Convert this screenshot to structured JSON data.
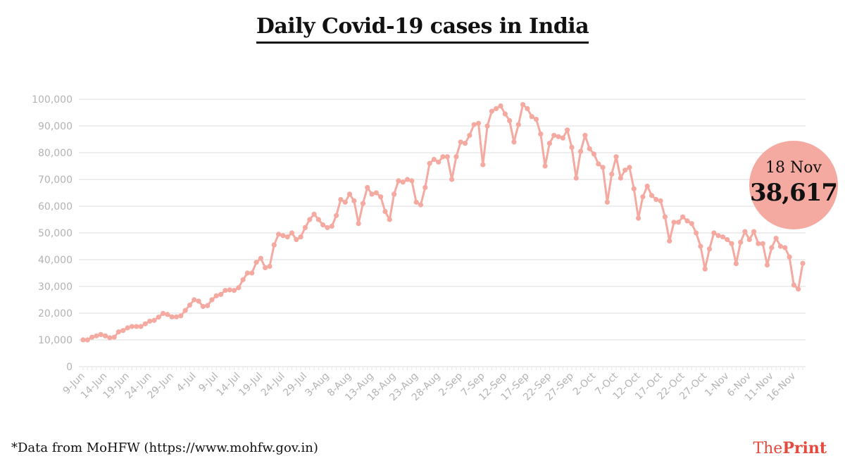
{
  "title": "Daily Covid-19 cases in India",
  "callout": {
    "date": "18 Nov",
    "value": "38,617"
  },
  "source": "*Data from MoHFW (https://www.mohfw.gov.in)",
  "logo": {
    "part1": "The",
    "part2": "Print"
  },
  "colors": {
    "line": "#f5aaa1",
    "grid": "#e8e8e8",
    "tick": "#b3b3b3",
    "brand": "#e44b3e"
  },
  "chart_data": {
    "type": "line",
    "title": "Daily Covid-19 cases in India",
    "xlabel": "",
    "ylabel": "",
    "ylim": [
      0,
      100000
    ],
    "yticks": [
      0,
      10000,
      20000,
      30000,
      40000,
      50000,
      60000,
      70000,
      80000,
      90000,
      100000
    ],
    "ytick_labels": [
      "0",
      "10,000",
      "20,000",
      "30,000",
      "40,000",
      "50,000",
      "60,000",
      "70,000",
      "80,000",
      "90,000",
      "100,000"
    ],
    "xtick_labels": [
      "9-Jun",
      "14-Jun",
      "19-Jun",
      "24-Jun",
      "29-Jun",
      "4-Jul",
      "9-Jul",
      "14-Jul",
      "19-Jul",
      "24-Jul",
      "29-Jul",
      "3-Aug",
      "8-Aug",
      "13-Aug",
      "18-Aug",
      "23-Aug",
      "28-Aug",
      "2-Sep",
      "7-Sep",
      "12-Sep",
      "17-Sep",
      "22-Sep",
      "27-Sep",
      "2-Oct",
      "7-Oct",
      "12-Oct",
      "17-Oct",
      "22-Oct",
      "27-Oct",
      "1-Nov",
      "6-Nov",
      "11-Nov",
      "16-Nov"
    ],
    "grid": true,
    "series": [
      {
        "values": [
          10000,
          10000,
          11000,
          11500,
          12000,
          11500,
          10800,
          11000,
          13000,
          13500,
          14500,
          15000,
          15000,
          15000,
          16000,
          17000,
          17300,
          18500,
          19900,
          19500,
          18600,
          18600,
          19000,
          21000,
          23000,
          25000,
          24500,
          22500,
          22800,
          25000,
          26500,
          27000,
          28500,
          28700,
          28500,
          29500,
          32500,
          35000,
          35000,
          39000,
          40500,
          37000,
          37500,
          45500,
          49500,
          49000,
          48500,
          50000,
          47500,
          48500,
          52000,
          55000,
          57000,
          55000,
          53000,
          52000,
          52500,
          56500,
          62500,
          61500,
          64500,
          62000,
          53500,
          61000,
          67000,
          64500,
          65000,
          63500,
          58000,
          55000,
          64500,
          69500,
          69000,
          70000,
          69500,
          61500,
          60500,
          67000,
          76000,
          77500,
          76500,
          78500,
          78500,
          70000,
          78500,
          84000,
          83500,
          86500,
          90500,
          91000,
          75500,
          90000,
          95500,
          96500,
          97500,
          94500,
          92000,
          84000,
          90500,
          98000,
          96500,
          93500,
          92500,
          87000,
          75000,
          83500,
          86500,
          86000,
          85500,
          88500,
          82000,
          70500,
          80500,
          86500,
          81500,
          79500,
          75800,
          74500,
          61500,
          72000,
          78500,
          70500,
          73500,
          74500,
          66500,
          55500,
          63500,
          67500,
          64000,
          62500,
          62000,
          56000,
          47000,
          54000,
          54000,
          56000,
          54500,
          53500,
          50000,
          45000,
          36500,
          44000,
          50000,
          49000,
          48500,
          47500,
          46000,
          38500,
          46500,
          50500,
          47500,
          50500,
          46000,
          46000,
          38000,
          44500,
          48000,
          45000,
          44500,
          41000,
          30500,
          29000,
          38617
        ]
      }
    ],
    "annotation": {
      "label": "18 Nov",
      "value": 38617
    }
  }
}
